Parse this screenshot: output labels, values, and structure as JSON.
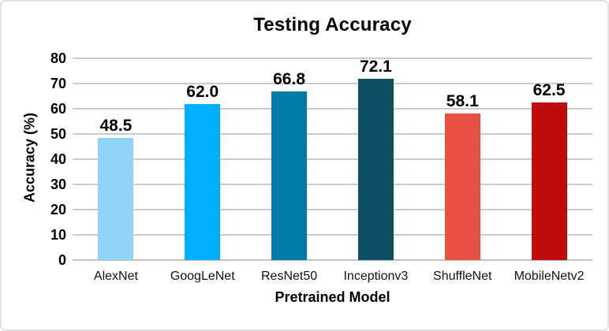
{
  "window": {
    "background": "#ffffff",
    "card_border_color": "#e2e2e2"
  },
  "chart_data": {
    "type": "bar",
    "title": "Testing Accuracy",
    "xlabel": "Pretrained Model",
    "ylabel": "Accuracy (%)",
    "categories": [
      "AlexNet",
      "GoogLeNet",
      "ResNet50",
      "Inceptionv3",
      "ShuffleNet",
      "MobileNetv2"
    ],
    "values": [
      48.5,
      62.0,
      66.8,
      72.1,
      58.1,
      62.5
    ],
    "value_labels": [
      "48.5",
      "62.0",
      "66.8",
      "72.1",
      "58.1",
      "62.5"
    ],
    "bar_colors": [
      "#8FD4F8",
      "#00AEFF",
      "#007CA6",
      "#0D4E63",
      "#E95043",
      "#BE0B0E"
    ],
    "ylim": [
      0,
      80
    ],
    "yticks": [
      0,
      10,
      20,
      30,
      40,
      50,
      60,
      70,
      80
    ],
    "grid": "horizontal",
    "gridline_color": "#cbcbcb",
    "axis_line_color": "#c3c3c3",
    "legend": "none"
  }
}
